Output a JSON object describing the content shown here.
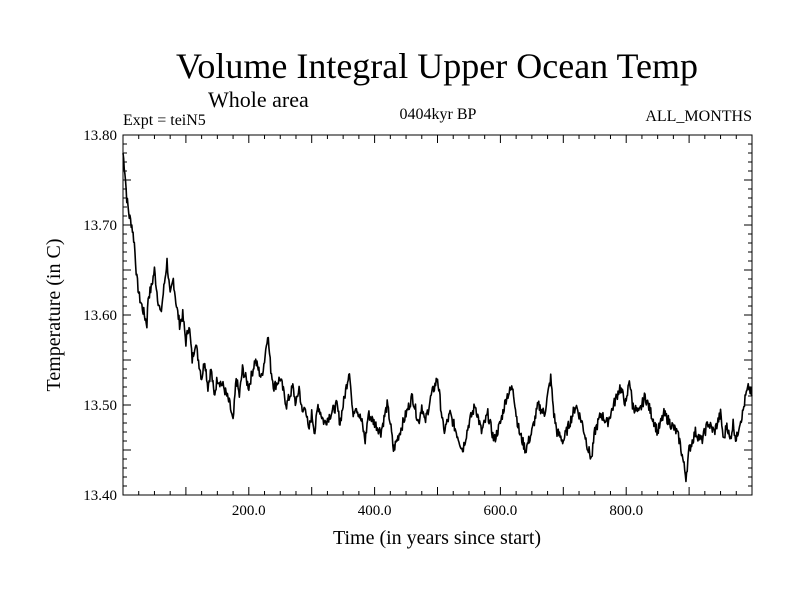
{
  "chart_data": {
    "type": "line",
    "title": "Volume Integral Upper Ocean Temp",
    "subtitle": "Whole area",
    "annotations": {
      "left": "Expt = teiN5",
      "center": "0404kyr BP",
      "right": "ALL_MONTHS"
    },
    "xlabel": "Time (in years since start)",
    "ylabel": "Temperature (in C)",
    "xlim": [
      0,
      1000
    ],
    "ylim": [
      13.4,
      13.8
    ],
    "xticks": [
      200,
      400,
      600,
      800
    ],
    "xtick_labels": [
      "200.0",
      "400.0",
      "600.0",
      "800.0"
    ],
    "yticks": [
      13.4,
      13.5,
      13.6,
      13.7,
      13.8
    ],
    "ytick_labels": [
      "13.40",
      "13.50",
      "13.60",
      "13.70",
      "13.80"
    ],
    "series": [
      {
        "name": "Temperature",
        "points": [
          [
            0,
            13.78
          ],
          [
            3,
            13.76
          ],
          [
            6,
            13.73
          ],
          [
            10,
            13.71
          ],
          [
            14,
            13.7
          ],
          [
            18,
            13.68
          ],
          [
            20,
            13.66
          ],
          [
            22,
            13.64
          ],
          [
            26,
            13.62
          ],
          [
            30,
            13.61
          ],
          [
            34,
            13.6
          ],
          [
            38,
            13.59
          ],
          [
            40,
            13.62
          ],
          [
            45,
            13.63
          ],
          [
            50,
            13.65
          ],
          [
            55,
            13.62
          ],
          [
            60,
            13.6
          ],
          [
            65,
            13.63
          ],
          [
            70,
            13.66
          ],
          [
            75,
            13.62
          ],
          [
            80,
            13.64
          ],
          [
            85,
            13.61
          ],
          [
            90,
            13.59
          ],
          [
            95,
            13.6
          ],
          [
            100,
            13.57
          ],
          [
            105,
            13.59
          ],
          [
            110,
            13.55
          ],
          [
            115,
            13.57
          ],
          [
            120,
            13.55
          ],
          [
            125,
            13.53
          ],
          [
            130,
            13.55
          ],
          [
            135,
            13.52
          ],
          [
            140,
            13.54
          ],
          [
            145,
            13.51
          ],
          [
            150,
            13.53
          ],
          [
            160,
            13.52
          ],
          [
            170,
            13.5
          ],
          [
            175,
            13.48
          ],
          [
            180,
            13.53
          ],
          [
            185,
            13.51
          ],
          [
            190,
            13.54
          ],
          [
            200,
            13.52
          ],
          [
            210,
            13.55
          ],
          [
            220,
            13.53
          ],
          [
            225,
            13.55
          ],
          [
            230,
            13.58
          ],
          [
            235,
            13.54
          ],
          [
            240,
            13.52
          ],
          [
            250,
            13.53
          ],
          [
            260,
            13.5
          ],
          [
            270,
            13.52
          ],
          [
            275,
            13.5
          ],
          [
            280,
            13.52
          ],
          [
            285,
            13.49
          ],
          [
            290,
            13.5
          ],
          [
            295,
            13.47
          ],
          [
            300,
            13.49
          ],
          [
            305,
            13.47
          ],
          [
            310,
            13.5
          ],
          [
            320,
            13.48
          ],
          [
            330,
            13.49
          ],
          [
            340,
            13.5
          ],
          [
            345,
            13.48
          ],
          [
            350,
            13.5
          ],
          [
            360,
            13.54
          ],
          [
            365,
            13.49
          ],
          [
            370,
            13.5
          ],
          [
            380,
            13.48
          ],
          [
            385,
            13.46
          ],
          [
            390,
            13.49
          ],
          [
            400,
            13.48
          ],
          [
            410,
            13.47
          ],
          [
            420,
            13.5
          ],
          [
            425,
            13.48
          ],
          [
            430,
            13.45
          ],
          [
            440,
            13.47
          ],
          [
            450,
            13.49
          ],
          [
            460,
            13.51
          ],
          [
            470,
            13.48
          ],
          [
            475,
            13.5
          ],
          [
            480,
            13.48
          ],
          [
            490,
            13.51
          ],
          [
            500,
            13.53
          ],
          [
            505,
            13.5
          ],
          [
            510,
            13.47
          ],
          [
            520,
            13.49
          ],
          [
            530,
            13.47
          ],
          [
            540,
            13.45
          ],
          [
            550,
            13.48
          ],
          [
            560,
            13.5
          ],
          [
            570,
            13.47
          ],
          [
            580,
            13.49
          ],
          [
            590,
            13.46
          ],
          [
            600,
            13.48
          ],
          [
            610,
            13.51
          ],
          [
            620,
            13.52
          ],
          [
            625,
            13.49
          ],
          [
            630,
            13.47
          ],
          [
            640,
            13.45
          ],
          [
            650,
            13.47
          ],
          [
            660,
            13.5
          ],
          [
            670,
            13.49
          ],
          [
            680,
            13.53
          ],
          [
            685,
            13.49
          ],
          [
            690,
            13.47
          ],
          [
            700,
            13.46
          ],
          [
            710,
            13.48
          ],
          [
            720,
            13.5
          ],
          [
            730,
            13.48
          ],
          [
            740,
            13.45
          ],
          [
            745,
            13.44
          ],
          [
            750,
            13.47
          ],
          [
            760,
            13.49
          ],
          [
            770,
            13.48
          ],
          [
            780,
            13.5
          ],
          [
            790,
            13.52
          ],
          [
            800,
            13.5
          ],
          [
            805,
            13.53
          ],
          [
            810,
            13.5
          ],
          [
            820,
            13.49
          ],
          [
            830,
            13.51
          ],
          [
            840,
            13.49
          ],
          [
            850,
            13.47
          ],
          [
            860,
            13.49
          ],
          [
            870,
            13.48
          ],
          [
            880,
            13.47
          ],
          [
            885,
            13.46
          ],
          [
            890,
            13.44
          ],
          [
            895,
            13.42
          ],
          [
            900,
            13.45
          ],
          [
            910,
            13.47
          ],
          [
            920,
            13.46
          ],
          [
            930,
            13.48
          ],
          [
            940,
            13.47
          ],
          [
            950,
            13.49
          ],
          [
            955,
            13.46
          ],
          [
            960,
            13.48
          ],
          [
            965,
            13.46
          ],
          [
            970,
            13.48
          ],
          [
            975,
            13.46
          ],
          [
            980,
            13.48
          ],
          [
            985,
            13.49
          ],
          [
            990,
            13.51
          ],
          [
            995,
            13.52
          ],
          [
            1000,
            13.51
          ]
        ]
      }
    ]
  }
}
